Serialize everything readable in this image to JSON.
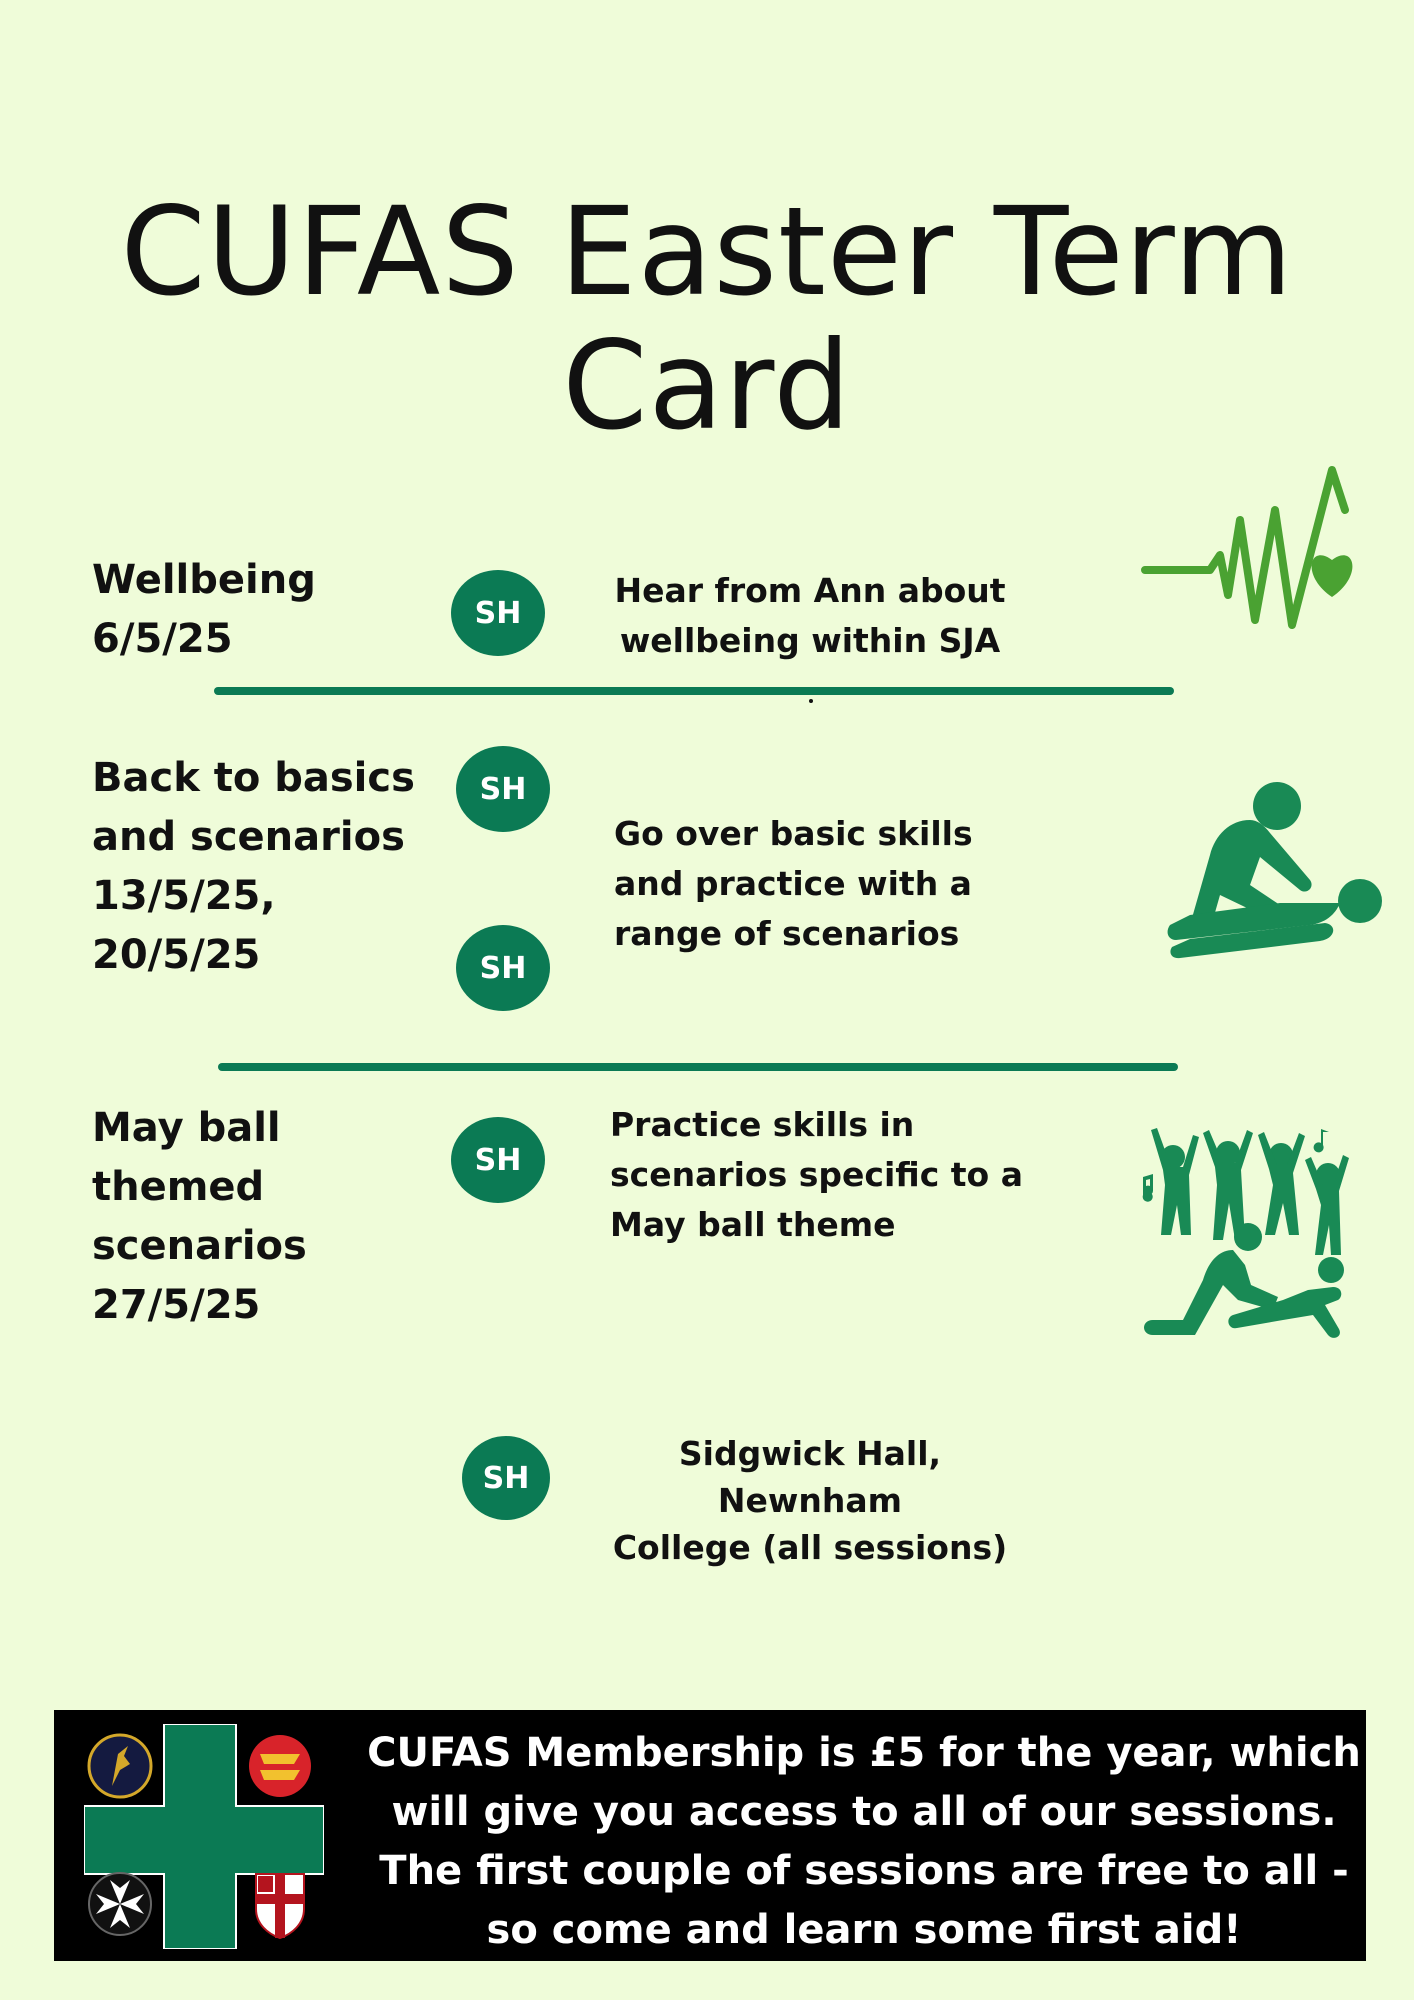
{
  "title": "CUFAS Easter Term Card",
  "colors": {
    "background": "#effcd9",
    "accent": "#0b7a54",
    "icon_green": "#4aa232",
    "footer_bg": "#000000"
  },
  "sessions": [
    {
      "label": "Wellbeing\n6/5/25",
      "badges": [
        "SH"
      ],
      "description": "Hear from Ann about\nwellbeing within SJA",
      "icon": "heartbeat-icon"
    },
    {
      "label": "Back to basics\nand scenarios\n13/5/25,\n20/5/25",
      "badges": [
        "SH",
        "SH"
      ],
      "description": "Go over basic skills\nand  practice with a\nrange of scenarios",
      "icon": "cpr-icon"
    },
    {
      "label": "May ball\nthemed\nscenarios\n27/5/25",
      "badges": [
        "SH"
      ],
      "description": "Practice skills in\nscenarios specific to a\nMay ball theme",
      "icon": "dancing-crowd-cpr-icon"
    }
  ],
  "legend": {
    "badge": "SH",
    "text": "Sidgwick Hall, Newnham\nCollege  (all sessions)"
  },
  "footer": {
    "text": "CUFAS Membership is £5 for the year, which\nwill give you access to all of our sessions.\nThe first couple of sessions are free to all -\nso come and learn some first aid!",
    "logo_icons": [
      "heron-crest-icon",
      "lion-crest-icon",
      "maltese-cross-icon",
      "college-shield-icon"
    ]
  }
}
